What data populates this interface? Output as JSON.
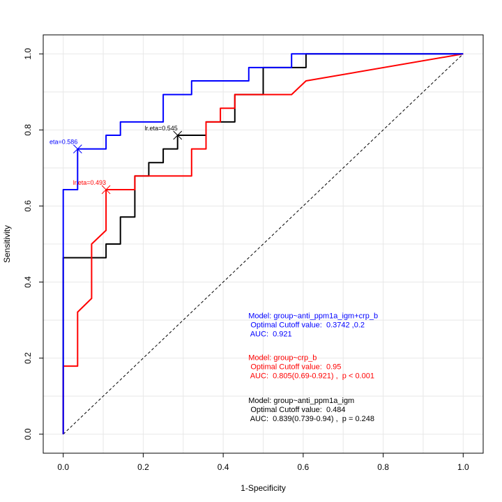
{
  "chart_data": {
    "type": "line",
    "xlabel": "1-Specificity",
    "ylabel": "Sensitivity",
    "xlim": [
      -0.05,
      1.05
    ],
    "ylim": [
      -0.05,
      1.05
    ],
    "xticks": [
      "0.0",
      "0.2",
      "0.4",
      "0.6",
      "0.8",
      "1.0"
    ],
    "yticks": [
      "0.0",
      "0.2",
      "0.4",
      "0.6",
      "0.8",
      "1.0"
    ],
    "grid": true,
    "diagonal_reference": true,
    "series": [
      {
        "color": "#0000ff",
        "points": [
          [
            0,
            0
          ],
          [
            0,
            0.643
          ],
          [
            0.036,
            0.643
          ],
          [
            0.036,
            0.75
          ],
          [
            0.107,
            0.75
          ],
          [
            0.107,
            0.786
          ],
          [
            0.143,
            0.786
          ],
          [
            0.143,
            0.821
          ],
          [
            0.25,
            0.821
          ],
          [
            0.25,
            0.893
          ],
          [
            0.321,
            0.893
          ],
          [
            0.321,
            0.929
          ],
          [
            0.464,
            0.929
          ],
          [
            0.464,
            0.964
          ],
          [
            0.571,
            0.964
          ],
          [
            0.571,
            1.0
          ],
          [
            1.0,
            1.0
          ]
        ],
        "cutoff_point": [
          0.036,
          0.75
        ],
        "cutoff_label": "eta=0.586"
      },
      {
        "color": "#ff0000",
        "points": [
          [
            0,
            0
          ],
          [
            0,
            0.179
          ],
          [
            0.036,
            0.179
          ],
          [
            0.036,
            0.321
          ],
          [
            0.071,
            0.357
          ],
          [
            0.071,
            0.5
          ],
          [
            0.107,
            0.536
          ],
          [
            0.107,
            0.643
          ],
          [
            0.179,
            0.643
          ],
          [
            0.179,
            0.679
          ],
          [
            0.321,
            0.679
          ],
          [
            0.321,
            0.75
          ],
          [
            0.357,
            0.75
          ],
          [
            0.357,
            0.821
          ],
          [
            0.393,
            0.821
          ],
          [
            0.393,
            0.857
          ],
          [
            0.429,
            0.857
          ],
          [
            0.429,
            0.893
          ],
          [
            0.571,
            0.893
          ],
          [
            0.607,
            0.929
          ],
          [
            1.0,
            1.0
          ]
        ],
        "cutoff_point": [
          0.107,
          0.643
        ],
        "cutoff_label": "lr.eta=0.493"
      },
      {
        "color": "#000000",
        "points": [
          [
            0,
            0
          ],
          [
            0,
            0.464
          ],
          [
            0.107,
            0.464
          ],
          [
            0.107,
            0.5
          ],
          [
            0.143,
            0.5
          ],
          [
            0.143,
            0.571
          ],
          [
            0.179,
            0.571
          ],
          [
            0.179,
            0.679
          ],
          [
            0.214,
            0.679
          ],
          [
            0.214,
            0.714
          ],
          [
            0.25,
            0.714
          ],
          [
            0.25,
            0.75
          ],
          [
            0.286,
            0.75
          ],
          [
            0.286,
            0.786
          ],
          [
            0.357,
            0.786
          ],
          [
            0.357,
            0.821
          ],
          [
            0.429,
            0.821
          ],
          [
            0.429,
            0.893
          ],
          [
            0.5,
            0.893
          ],
          [
            0.5,
            0.964
          ],
          [
            0.607,
            0.964
          ],
          [
            0.607,
            1.0
          ],
          [
            1.0,
            1.0
          ]
        ],
        "cutoff_point": [
          0.286,
          0.786
        ],
        "cutoff_label": "lr.eta=0.545"
      }
    ],
    "annotations": [
      {
        "color": "#0000ff",
        "anchor": [
          0.463,
          0.305
        ],
        "lines": [
          "Model: group~anti_ppm1a_igm+crp_b",
          " Optimal Cutoff value:  0.3742 ,0.2",
          " AUC:  0.921"
        ]
      },
      {
        "color": "#ff0000",
        "anchor": [
          0.463,
          0.195
        ],
        "lines": [
          "Model: group~crp_b",
          " Optimal Cutoff value:  0.95",
          " AUC:  0.805(0.69-0.921) ,  p < 0.001"
        ]
      },
      {
        "color": "#000000",
        "anchor": [
          0.463,
          0.082
        ],
        "lines": [
          "Model: group~anti_ppm1a_igm",
          " Optimal Cutoff value:  0.484",
          " AUC:  0.839(0.739-0.94) ,  p = 0.248"
        ]
      }
    ]
  }
}
